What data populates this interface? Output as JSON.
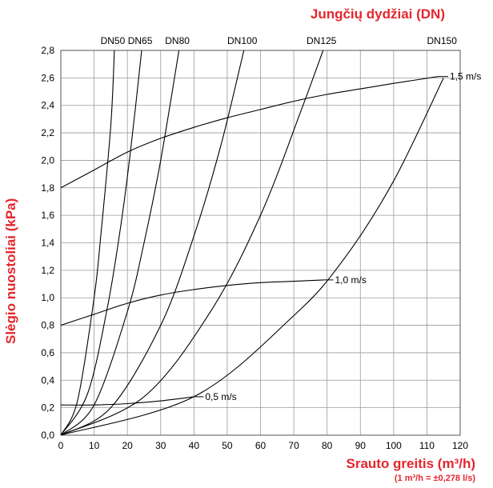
{
  "chart_data": {
    "type": "line",
    "title": "Jungčių dydžiai (DN)",
    "xlabel": "Srauto greitis (m³/h)",
    "xlabel_note": "(1 m³/h = ±0,278 l/s)",
    "ylabel": "Slėgio nuostoliai (kPa)",
    "xlim": [
      0,
      120
    ],
    "ylim": [
      0,
      2.8
    ],
    "x_ticks": [
      "0",
      "10",
      "20",
      "30",
      "40",
      "50",
      "60",
      "70",
      "80",
      "90",
      "100",
      "110",
      "120"
    ],
    "y_ticks": [
      "0,0",
      "0,2",
      "0,4",
      "0,6",
      "0,8",
      "1,0",
      "1,2",
      "1,4",
      "1,6",
      "1,8",
      "2,0",
      "2,2",
      "2,4",
      "2,6",
      "2,8"
    ],
    "grid": true,
    "series": [
      {
        "name": "DN50",
        "x": [
          0,
          5,
          10,
          12,
          15,
          16.1
        ],
        "y": [
          0,
          0.25,
          1.0,
          1.45,
          2.25,
          2.8
        ]
      },
      {
        "name": "DN65",
        "x": [
          0,
          8,
          14,
          18,
          21,
          24.3
        ],
        "y": [
          0,
          0.3,
          0.93,
          1.52,
          2.08,
          2.8
        ]
      },
      {
        "name": "DN80",
        "x": [
          0,
          10,
          20,
          25,
          30,
          35.5
        ],
        "y": [
          0,
          0.22,
          0.9,
          1.4,
          2.0,
          2.8
        ]
      },
      {
        "name": "DN100",
        "x": [
          0,
          15,
          30,
          40,
          48,
          55
        ],
        "y": [
          0,
          0.2,
          0.8,
          1.45,
          2.1,
          2.8
        ]
      },
      {
        "name": "DN125",
        "x": [
          0,
          25,
          45,
          60,
          72,
          78.8
        ],
        "y": [
          0,
          0.28,
          0.9,
          1.6,
          2.35,
          2.8
        ]
      },
      {
        "name": "DN150",
        "x": [
          0,
          40,
          70,
          85,
          100,
          115
        ],
        "y": [
          0,
          0.28,
          0.87,
          1.28,
          1.85,
          2.6
        ]
      },
      {
        "name": "1,5 m/s",
        "x": [
          0,
          10,
          20,
          30,
          40,
          50,
          60,
          70,
          80,
          90,
          100,
          113.5
        ],
        "y": [
          1.8,
          1.93,
          2.06,
          2.16,
          2.24,
          2.31,
          2.37,
          2.43,
          2.48,
          2.52,
          2.56,
          2.61
        ]
      },
      {
        "name": "1,0 m/s",
        "x": [
          0,
          10,
          20,
          30,
          40,
          50,
          60,
          70,
          79
        ],
        "y": [
          0.8,
          0.88,
          0.96,
          1.02,
          1.06,
          1.09,
          1.11,
          1.12,
          1.13
        ]
      },
      {
        "name": "0,5 m/s",
        "x": [
          0,
          10,
          20,
          30,
          40
        ],
        "y": [
          0.22,
          0.22,
          0.23,
          0.25,
          0.28
        ]
      }
    ]
  }
}
